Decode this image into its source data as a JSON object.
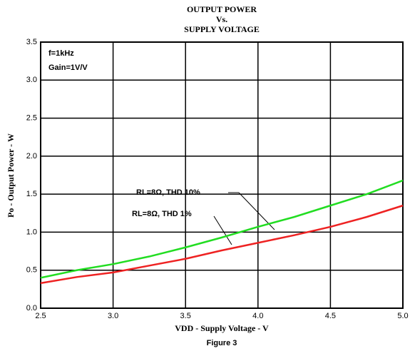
{
  "chart_data": {
    "type": "line",
    "title": [
      "OUTPUT POWER",
      "Vs.",
      "SUPPLY VOLTAGE"
    ],
    "xlabel": "VDD - Supply Voltage - V",
    "ylabel": "Po - Output Power - W",
    "caption": "Figure 3",
    "annotations": [
      "f=1kHz",
      "Gain=1V/V"
    ],
    "x": [
      2.5,
      2.75,
      3.0,
      3.25,
      3.5,
      3.75,
      4.0,
      4.25,
      4.5,
      4.75,
      5.0
    ],
    "series": [
      {
        "name": "RL=8Ω, THD 10%",
        "color": "#22dd22",
        "values": [
          0.4,
          0.5,
          0.58,
          0.68,
          0.8,
          0.93,
          1.07,
          1.2,
          1.35,
          1.5,
          1.68
        ]
      },
      {
        "name": "RL=8Ω, THD 1%",
        "color": "#ee2222",
        "values": [
          0.33,
          0.41,
          0.47,
          0.56,
          0.65,
          0.76,
          0.86,
          0.96,
          1.07,
          1.2,
          1.35
        ]
      }
    ],
    "xlim": [
      2.5,
      5.0
    ],
    "xticks": [
      2.5,
      {
        "value": 3,
        "label": "3.0"
      },
      3.5,
      {
        "value": 4,
        "label": "4.0"
      },
      4.5,
      {
        "value": 5,
        "label": "5.0"
      }
    ],
    "ylim": [
      0,
      3.5
    ],
    "yticks": [
      {
        "value": 0,
        "label": "0.0"
      },
      0.5,
      {
        "value": 1,
        "label": "1.0"
      },
      1.5,
      {
        "value": 2,
        "label": "2.0"
      },
      2.5,
      {
        "value": 3,
        "label": "3.0"
      },
      3.5
    ],
    "grid": true
  }
}
